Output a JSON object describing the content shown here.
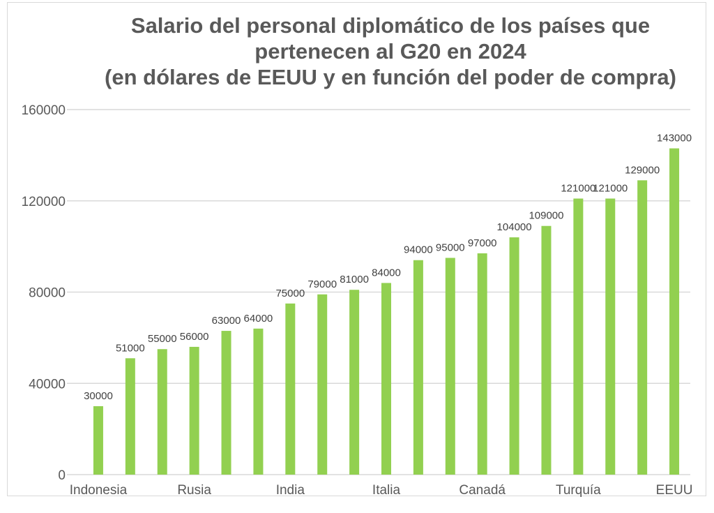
{
  "chart_data": {
    "type": "bar",
    "title_lines": [
      "Salario del personal diplomático de los países que",
      "pertenecen al G20 en 2024",
      "(en dólares de EEUU y en función del poder de compra)"
    ],
    "xlabel": "",
    "ylabel": "",
    "ylim": [
      0,
      160000
    ],
    "yticks": [
      "0",
      "40000",
      "80000",
      "120000",
      "160000"
    ],
    "category_labels_shown": [
      {
        "index": 0,
        "label": "Indonesia"
      },
      {
        "index": 3,
        "label": "Rusia"
      },
      {
        "index": 6,
        "label": "India"
      },
      {
        "index": 9,
        "label": "Italia"
      },
      {
        "index": 12,
        "label": "Canadá"
      },
      {
        "index": 15,
        "label": "Turquía"
      },
      {
        "index": 18,
        "label": "EEUU"
      }
    ],
    "values": [
      30000,
      51000,
      55000,
      56000,
      63000,
      64000,
      75000,
      79000,
      81000,
      84000,
      94000,
      95000,
      97000,
      104000,
      109000,
      121000,
      121000,
      129000,
      143000
    ],
    "data_labels": [
      "30000",
      "51000",
      "55000",
      "56000",
      "63000",
      "64000",
      "75000",
      "79000",
      "81000",
      "84000",
      "94000",
      "95000",
      "97000",
      "104000",
      "109000",
      "121000",
      "121000",
      "129000",
      "143000"
    ],
    "grid": true,
    "legend": "none",
    "colors": {
      "bar": "#92d050",
      "grid": "#d9d9d9",
      "title": "#595959",
      "axis_text": "#595959",
      "label_text": "#404040"
    }
  }
}
